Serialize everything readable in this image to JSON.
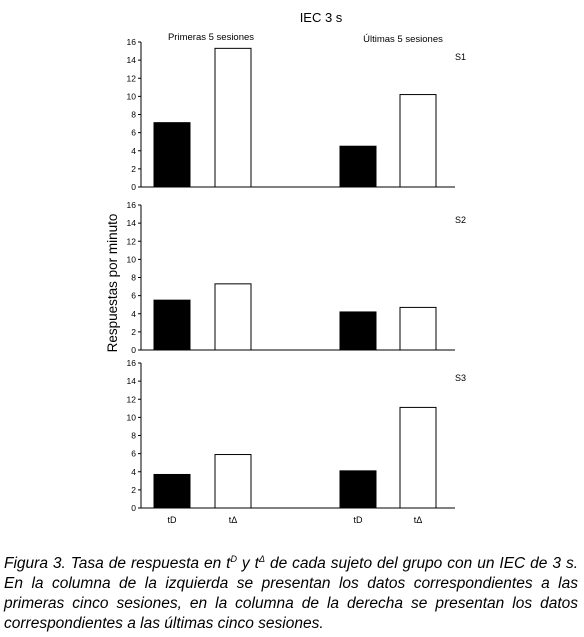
{
  "chart_data": {
    "type": "bar",
    "title": "IEC 3 s",
    "ylabel": "Respuestas por minuto",
    "ylim": [
      0,
      16
    ],
    "yticks": [
      0,
      2,
      4,
      6,
      8,
      10,
      12,
      14,
      16
    ],
    "group_labels": [
      "Primeras 5 sesiones",
      "Últimas 5 sesiones"
    ],
    "categories": [
      "tD",
      "tΔ",
      "tD",
      "tΔ"
    ],
    "colors": {
      "tD": "#000000",
      "tΔ": "#ffffff",
      "stroke": "#000000"
    },
    "panels": [
      {
        "label": "S1",
        "values": [
          7.1,
          15.3,
          4.5,
          10.2
        ]
      },
      {
        "label": "S2",
        "values": [
          5.5,
          7.3,
          4.2,
          4.7
        ]
      },
      {
        "label": "S3",
        "values": [
          3.7,
          5.9,
          4.1,
          11.1
        ]
      }
    ]
  },
  "caption": {
    "prefix": "Figura 3. Tasa de respuesta en t",
    "sup1": "D",
    "mid": " y t",
    "sup2": "Δ",
    "suffix": " de cada sujeto del grupo con un IEC de 3 s. En la columna de la izquierda se presentan los datos correspondientes a las primeras cinco sesiones, en la columna de la derecha se presentan los datos correspondientes a las últimas cinco sesiones."
  }
}
